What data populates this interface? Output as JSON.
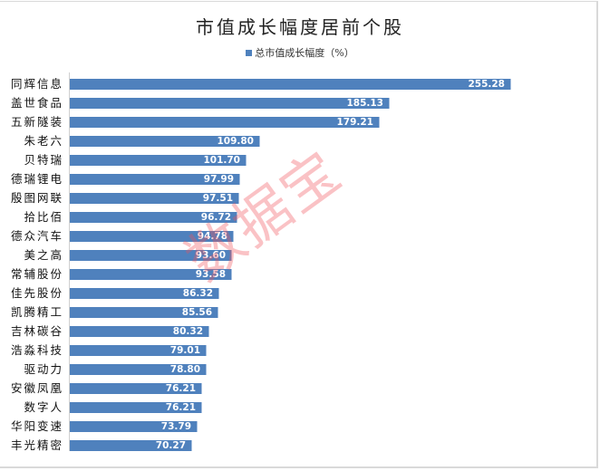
{
  "chart_data": {
    "type": "bar",
    "orientation": "horizontal",
    "title": "市值成长幅度居前个股",
    "xlabel": "",
    "ylabel": "",
    "legend": {
      "position": "top",
      "entries": [
        "总市值成长幅度（%）"
      ]
    },
    "grid": false,
    "series_color": "#4f81bd",
    "categories": [
      "同辉信息",
      "盖世食品",
      "五新隧装",
      "朱老六",
      "贝特瑞",
      "德瑞锂电",
      "殷图网联",
      "拾比佰",
      "德众汽车",
      "美之高",
      "常辅股份",
      "佳先股份",
      "凯腾精工",
      "吉林碳谷",
      "浩淼科技",
      "驱动力",
      "安徽凤凰",
      "数字人",
      "华阳变速",
      "丰光精密"
    ],
    "series": [
      {
        "name": "总市值成长幅度（%）",
        "values": [
          255.28,
          185.13,
          179.21,
          109.8,
          101.7,
          97.99,
          97.51,
          96.72,
          94.78,
          93.6,
          93.58,
          86.32,
          85.56,
          80.32,
          79.01,
          78.8,
          76.21,
          76.21,
          73.79,
          70.27
        ]
      }
    ],
    "data_labels": [
      "255.28",
      "185.13",
      "179.21",
      "109.80",
      "101.70",
      "97.99",
      "97.51",
      "96.72",
      "94.78",
      "93.60",
      "93.58",
      "86.32",
      "85.56",
      "80.32",
      "79.01",
      "78.80",
      "76.21",
      "76.21",
      "73.79",
      "70.27"
    ],
    "annotations": [
      "数据宝"
    ]
  },
  "title": "市值成长幅度居前个股",
  "legend_label": "总市值成长幅度（%）",
  "watermark": "数据宝"
}
